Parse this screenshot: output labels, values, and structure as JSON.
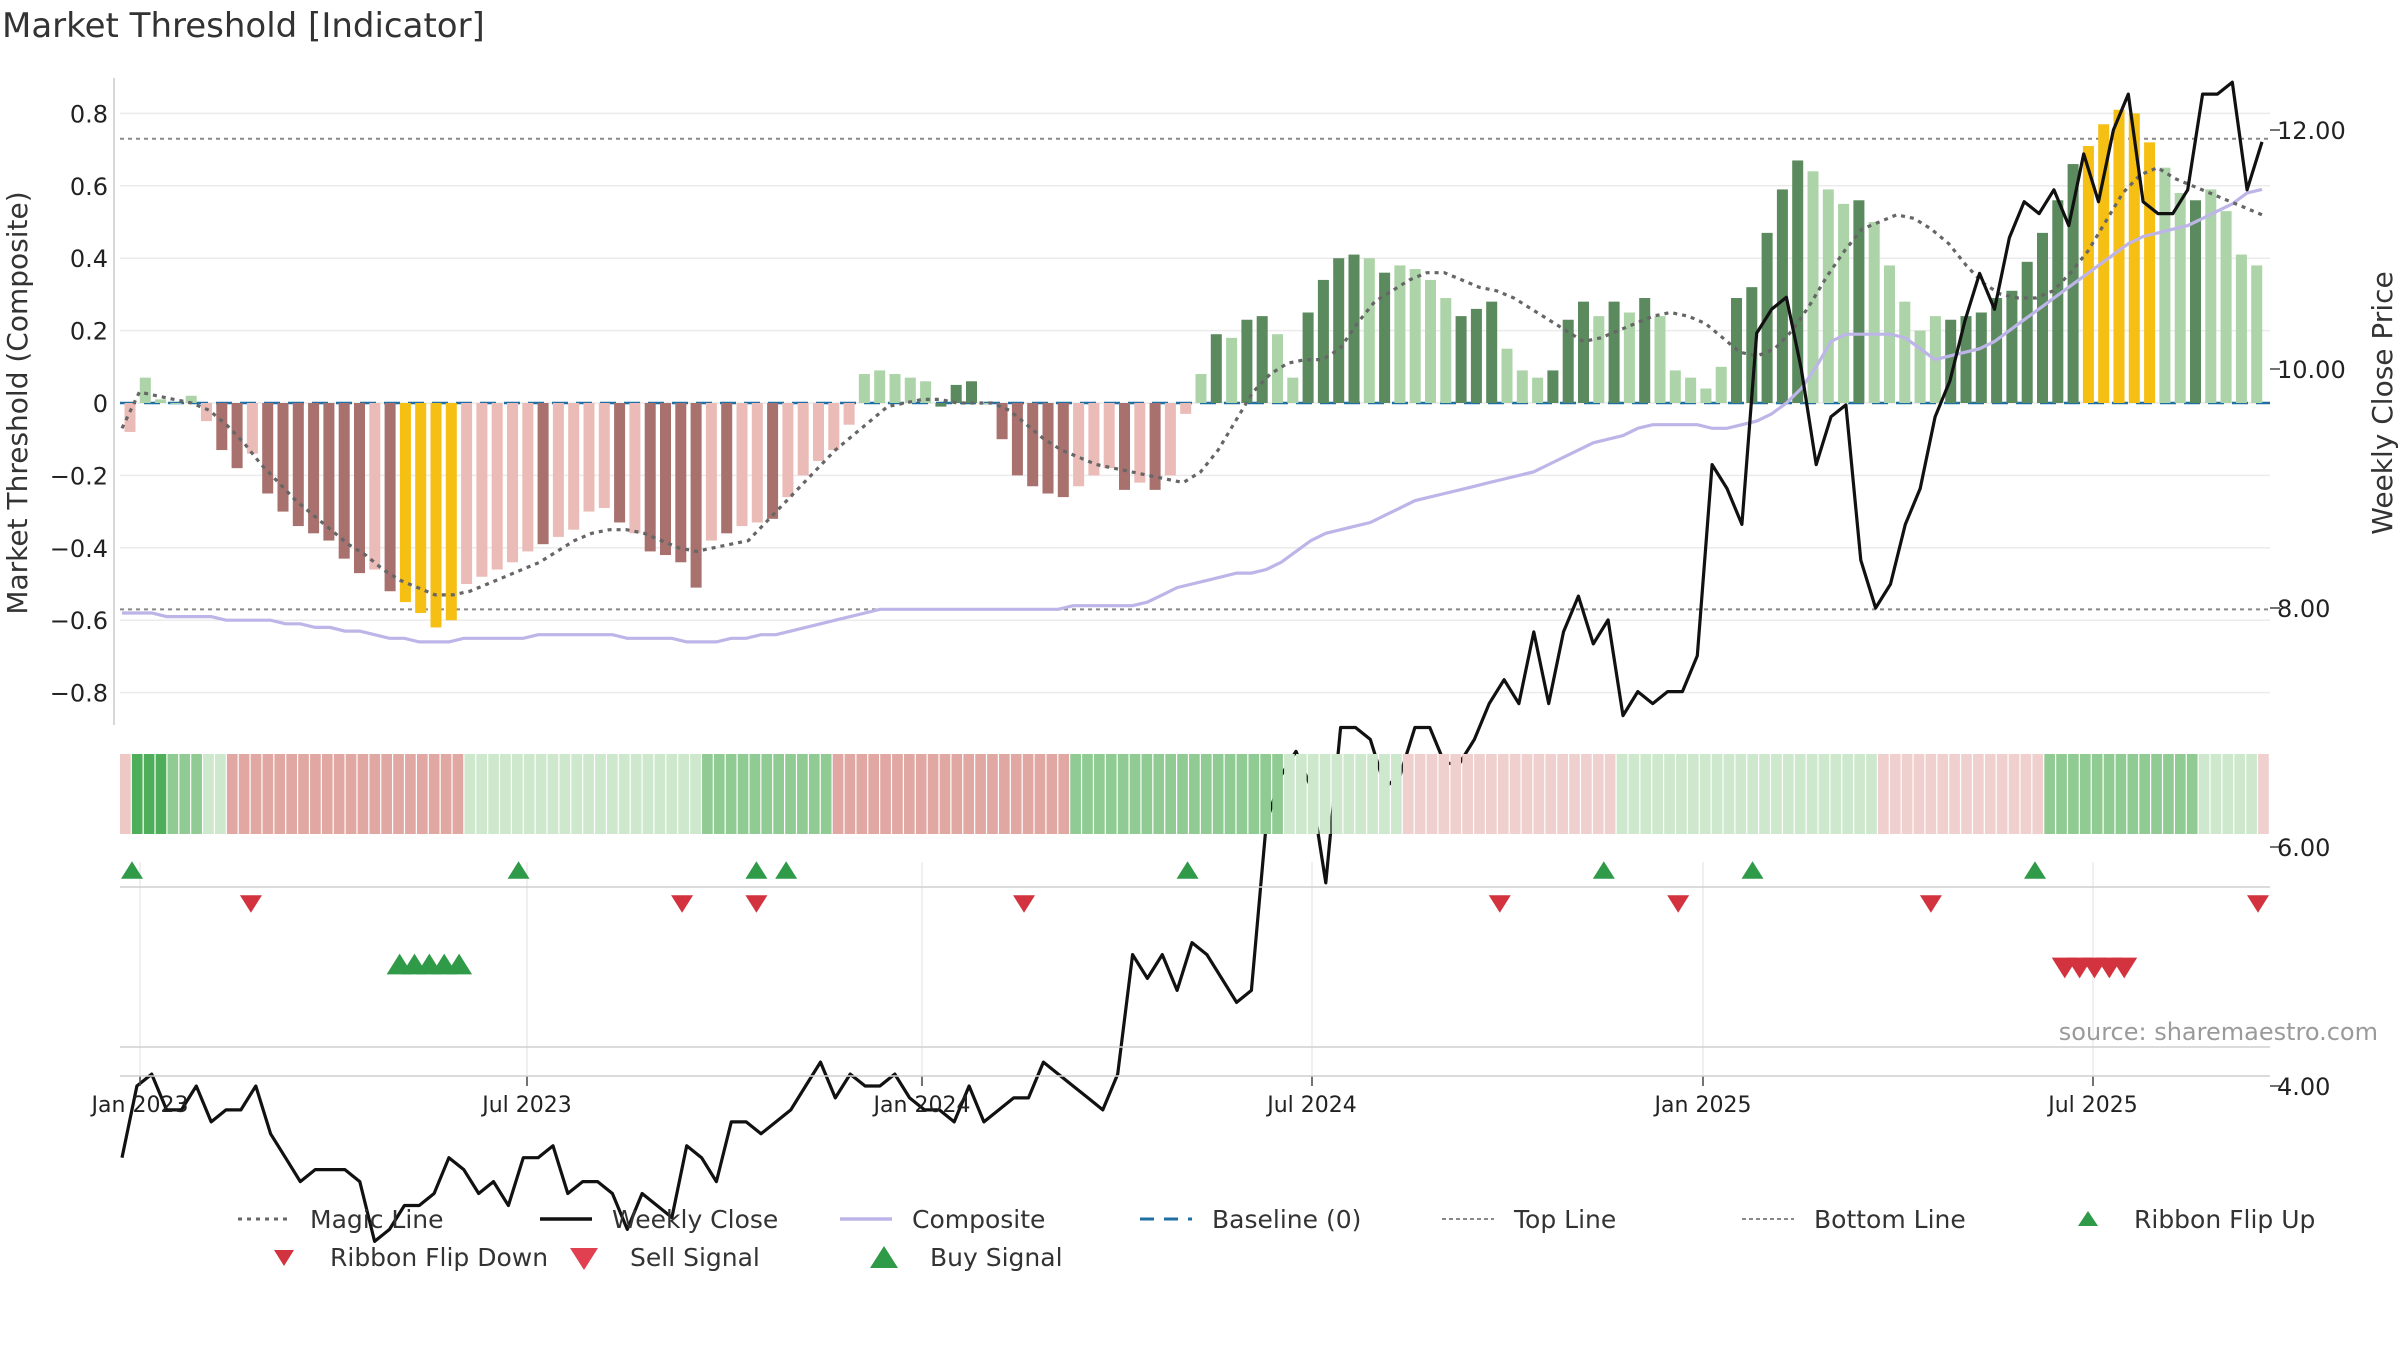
{
  "title": "Market Threshold [Indicator]",
  "source_note": "source: sharemaestro.com",
  "colors": {
    "buy_strong": "#5b8a5e",
    "buy_weak": "#acd4a8",
    "sell_strong": "#a8716d",
    "sell_weak": "#ebbcb7",
    "extreme": "#f5bf14",
    "close": "#111111",
    "composite": "#bdb5e8",
    "magic": "#666666",
    "baseline": "#1f6fa5",
    "signal_up": "#2f9a48",
    "signal_down": "#d2333e"
  },
  "chart_data": {
    "type": "bar+line",
    "y_left": {
      "label": "Market Threshold (Composite)",
      "ticks": [
        "0.8",
        "0.6",
        "0.4",
        "0.2",
        "0",
        "−0.2",
        "−0.4",
        "−0.6",
        "−0.8"
      ],
      "range": [
        -0.9,
        0.9
      ]
    },
    "y_right": {
      "label": "Weekly Close Price",
      "ticks": [
        "12.00",
        "10.00",
        "8.00",
        "6.00",
        "4.00"
      ],
      "range": [
        2.4,
        12.8
      ]
    },
    "x_ticks": [
      "Jan 2023",
      "Jul 2023",
      "Jan 2024",
      "Jul 2024",
      "Jan 2025",
      "Jul 2025"
    ],
    "top_line": 0.73,
    "bottom_line": -0.57,
    "bars": [
      -0.08,
      0.07,
      0.01,
      0.0,
      0.02,
      -0.05,
      -0.13,
      -0.18,
      -0.14,
      -0.25,
      -0.3,
      -0.34,
      -0.36,
      -0.38,
      -0.43,
      -0.47,
      -0.46,
      -0.52,
      -0.55,
      -0.58,
      -0.62,
      -0.6,
      -0.5,
      -0.48,
      -0.46,
      -0.44,
      -0.41,
      -0.39,
      -0.37,
      -0.35,
      -0.3,
      -0.29,
      -0.33,
      -0.36,
      -0.41,
      -0.42,
      -0.44,
      -0.51,
      -0.38,
      -0.36,
      -0.34,
      -0.33,
      -0.32,
      -0.26,
      -0.2,
      -0.16,
      -0.13,
      -0.06,
      0.08,
      0.09,
      0.08,
      0.07,
      0.06,
      -0.01,
      0.05,
      0.06,
      0.0,
      -0.1,
      -0.2,
      -0.23,
      -0.25,
      -0.26,
      -0.23,
      -0.2,
      -0.18,
      -0.24,
      -0.22,
      -0.24,
      -0.2,
      -0.03,
      0.08,
      0.19,
      0.18,
      0.23,
      0.24,
      0.19,
      0.07,
      0.25,
      0.34,
      0.4,
      0.41,
      0.4,
      0.36,
      0.38,
      0.37,
      0.34,
      0.29,
      0.24,
      0.26,
      0.28,
      0.15,
      0.09,
      0.07,
      0.09,
      0.23,
      0.28,
      0.24,
      0.28,
      0.25,
      0.29,
      0.24,
      0.09,
      0.07,
      0.04,
      0.1,
      0.29,
      0.32,
      0.47,
      0.59,
      0.67,
      0.64,
      0.59,
      0.55,
      0.56,
      0.5,
      0.38,
      0.28,
      0.2,
      0.24,
      0.23,
      0.24,
      0.25,
      0.29,
      0.31,
      0.39,
      0.47,
      0.56,
      0.66,
      0.71,
      0.77,
      0.81,
      0.8,
      0.72,
      0.65,
      0.58,
      0.56,
      0.59,
      0.53,
      0.41,
      0.38
    ],
    "bar_kind": [
      "sw",
      "bw",
      "bw",
      "bw",
      "bw",
      "sw",
      "ss",
      "ss",
      "sw",
      "ss",
      "ss",
      "ss",
      "ss",
      "ss",
      "ss",
      "ss",
      "sw",
      "ss",
      "ex",
      "ex",
      "ex",
      "ex",
      "sw",
      "sw",
      "sw",
      "sw",
      "sw",
      "ss",
      "sw",
      "sw",
      "sw",
      "sw",
      "ss",
      "sw",
      "ss",
      "ss",
      "ss",
      "ss",
      "sw",
      "ss",
      "sw",
      "sw",
      "ss",
      "sw",
      "sw",
      "sw",
      "sw",
      "sw",
      "bw",
      "bw",
      "bw",
      "bw",
      "bw",
      "bs",
      "bs",
      "bs",
      "bw",
      "ss",
      "ss",
      "ss",
      "ss",
      "ss",
      "sw",
      "sw",
      "sw",
      "ss",
      "sw",
      "ss",
      "sw",
      "sw",
      "bw",
      "bs",
      "bw",
      "bs",
      "bs",
      "bw",
      "bw",
      "bs",
      "bs",
      "bs",
      "bs",
      "bw",
      "bs",
      "bw",
      "bw",
      "bw",
      "bw",
      "bs",
      "bs",
      "bs",
      "bw",
      "bw",
      "bw",
      "bs",
      "bs",
      "bs",
      "bw",
      "bs",
      "bw",
      "bs",
      "bw",
      "bw",
      "bw",
      "bw",
      "bw",
      "bs",
      "bs",
      "bs",
      "bs",
      "bs",
      "bw",
      "bw",
      "bw",
      "bs",
      "bw",
      "bw",
      "bw",
      "bw",
      "bw",
      "bs",
      "bs",
      "bs",
      "bs",
      "bs",
      "bs",
      "bs",
      "bs",
      "bs",
      "ex",
      "ex",
      "ex",
      "ex",
      "ex",
      "bw",
      "bw",
      "bs",
      "bw",
      "bw",
      "bw",
      "bw"
    ],
    "composite": [
      -0.58,
      -0.58,
      -0.58,
      -0.59,
      -0.59,
      -0.59,
      -0.59,
      -0.6,
      -0.6,
      -0.6,
      -0.6,
      -0.61,
      -0.61,
      -0.62,
      -0.62,
      -0.63,
      -0.63,
      -0.64,
      -0.65,
      -0.65,
      -0.66,
      -0.66,
      -0.66,
      -0.65,
      -0.65,
      -0.65,
      -0.65,
      -0.65,
      -0.64,
      -0.64,
      -0.64,
      -0.64,
      -0.64,
      -0.64,
      -0.65,
      -0.65,
      -0.65,
      -0.65,
      -0.66,
      -0.66,
      -0.66,
      -0.65,
      -0.65,
      -0.64,
      -0.64,
      -0.63,
      -0.62,
      -0.61,
      -0.6,
      -0.59,
      -0.58,
      -0.57,
      -0.57,
      -0.57,
      -0.57,
      -0.57,
      -0.57,
      -0.57,
      -0.57,
      -0.57,
      -0.57,
      -0.57,
      -0.57,
      -0.57,
      -0.56,
      -0.56,
      -0.56,
      -0.56,
      -0.56,
      -0.55,
      -0.53,
      -0.51,
      -0.5,
      -0.49,
      -0.48,
      -0.47,
      -0.47,
      -0.46,
      -0.44,
      -0.41,
      -0.38,
      -0.36,
      -0.35,
      -0.34,
      -0.33,
      -0.31,
      -0.29,
      -0.27,
      -0.26,
      -0.25,
      -0.24,
      -0.23,
      -0.22,
      -0.21,
      -0.2,
      -0.19,
      -0.17,
      -0.15,
      -0.13,
      -0.11,
      -0.1,
      -0.09,
      -0.07,
      -0.06,
      -0.06,
      -0.06,
      -0.06,
      -0.07,
      -0.07,
      -0.06,
      -0.05,
      -0.03,
      0.0,
      0.04,
      0.1,
      0.17,
      0.19,
      0.19,
      0.19,
      0.19,
      0.18,
      0.15,
      0.12,
      0.13,
      0.14,
      0.15,
      0.17,
      0.2,
      0.23,
      0.26,
      0.29,
      0.32,
      0.35,
      0.38,
      0.41,
      0.44,
      0.46,
      0.47,
      0.48,
      0.49,
      0.51,
      0.53,
      0.55,
      0.58,
      0.59
    ],
    "magic_line": [
      -0.07,
      0.03,
      0.02,
      0.01,
      0.0,
      -0.02,
      -0.06,
      -0.11,
      -0.17,
      -0.22,
      -0.27,
      -0.31,
      -0.35,
      -0.39,
      -0.42,
      -0.46,
      -0.49,
      -0.51,
      -0.53,
      -0.53,
      -0.52,
      -0.5,
      -0.48,
      -0.46,
      -0.44,
      -0.41,
      -0.38,
      -0.36,
      -0.35,
      -0.35,
      -0.36,
      -0.38,
      -0.4,
      -0.41,
      -0.4,
      -0.39,
      -0.38,
      -0.33,
      -0.28,
      -0.23,
      -0.18,
      -0.13,
      -0.09,
      -0.05,
      -0.01,
      0.0,
      0.01,
      0.01,
      0.0,
      0.0,
      0.0,
      -0.02,
      -0.06,
      -0.1,
      -0.13,
      -0.15,
      -0.17,
      -0.18,
      -0.19,
      -0.2,
      -0.21,
      -0.22,
      -0.19,
      -0.13,
      -0.05,
      0.03,
      0.08,
      0.11,
      0.12,
      0.12,
      0.15,
      0.22,
      0.28,
      0.31,
      0.34,
      0.36,
      0.36,
      0.34,
      0.32,
      0.31,
      0.29,
      0.26,
      0.23,
      0.2,
      0.17,
      0.18,
      0.2,
      0.22,
      0.24,
      0.25,
      0.24,
      0.22,
      0.18,
      0.14,
      0.13,
      0.15,
      0.2,
      0.27,
      0.35,
      0.42,
      0.48,
      0.5,
      0.52,
      0.51,
      0.48,
      0.44,
      0.38,
      0.33,
      0.3,
      0.29,
      0.29,
      0.31,
      0.36,
      0.42,
      0.5,
      0.58,
      0.63,
      0.65,
      0.62,
      0.6,
      0.58,
      0.56,
      0.54,
      0.52
    ],
    "weekly_close": [
      3.4,
      4.0,
      4.1,
      3.8,
      3.8,
      4.0,
      3.7,
      3.8,
      3.8,
      4.0,
      3.6,
      3.4,
      3.2,
      3.3,
      3.3,
      3.3,
      3.2,
      2.7,
      2.8,
      3.0,
      3.0,
      3.1,
      3.4,
      3.3,
      3.1,
      3.2,
      3.0,
      3.4,
      3.4,
      3.5,
      3.1,
      3.2,
      3.2,
      3.1,
      2.8,
      3.1,
      3.0,
      2.9,
      3.5,
      3.4,
      3.2,
      3.7,
      3.7,
      3.6,
      3.7,
      3.8,
      4.0,
      4.2,
      3.9,
      4.1,
      4.0,
      4.0,
      4.1,
      3.9,
      3.8,
      3.8,
      3.7,
      4.0,
      3.7,
      3.8,
      3.9,
      3.9,
      4.2,
      4.1,
      4.0,
      3.9,
      3.8,
      4.1,
      5.1,
      4.9,
      5.1,
      4.8,
      5.2,
      5.1,
      4.9,
      4.7,
      4.8,
      6.2,
      6.6,
      6.8,
      6.5,
      5.7,
      7.0,
      7.0,
      6.9,
      6.5,
      6.6,
      7.0,
      7.0,
      6.7,
      6.7,
      6.9,
      7.2,
      7.4,
      7.2,
      7.8,
      7.2,
      7.8,
      8.1,
      7.7,
      7.9,
      7.1,
      7.3,
      7.2,
      7.3,
      7.3,
      7.6,
      9.2,
      9.0,
      8.7,
      10.3,
      10.5,
      10.6,
      10.0,
      9.2,
      9.6,
      9.7,
      8.4,
      8.0,
      8.2,
      8.7,
      9.0,
      9.6,
      9.9,
      10.4,
      10.8,
      10.5,
      11.1,
      11.4,
      11.3,
      11.5,
      11.2,
      11.8,
      11.4,
      12.0,
      12.3,
      11.4,
      11.3,
      11.3,
      11.5,
      12.3,
      12.3,
      12.4,
      11.5,
      11.9
    ],
    "ribbon_kind": [
      "sw",
      "bs",
      "bs",
      "bs",
      "bm",
      "bm",
      "bm",
      "bl",
      "bl",
      "sm",
      "sm",
      "sm",
      "sm",
      "sm",
      "sm",
      "sm",
      "sm",
      "sm",
      "sm",
      "sm",
      "sm",
      "sm",
      "sm",
      "sm",
      "sm",
      "sm",
      "sm",
      "sm",
      "sm",
      "bl",
      "bl",
      "bl",
      "bl",
      "bl",
      "bl",
      "bl",
      "bl",
      "bl",
      "bl",
      "bl",
      "bl",
      "bl",
      "bl",
      "bl",
      "bl",
      "bl",
      "bl",
      "bl",
      "bl",
      "bm",
      "bm",
      "bm",
      "bm",
      "bm",
      "bm",
      "bm",
      "bm",
      "bm",
      "bm",
      "bm",
      "sm",
      "sm",
      "sm",
      "sm",
      "sm",
      "sm",
      "sm",
      "sm",
      "sm",
      "sm",
      "sm",
      "sm",
      "sm",
      "sm",
      "sm",
      "sm",
      "sm",
      "sm",
      "sm",
      "sm",
      "bm",
      "bm",
      "bm",
      "bm",
      "bm",
      "bm",
      "bm",
      "bm",
      "bm",
      "bm",
      "bm",
      "bm",
      "bm",
      "bm",
      "bm",
      "bm",
      "bm",
      "bm",
      "bl",
      "bl",
      "bl",
      "bl",
      "bl",
      "bl",
      "bl",
      "bl",
      "bl",
      "bl",
      "sl",
      "sl",
      "sl",
      "sl",
      "sl",
      "sl",
      "sl",
      "sl",
      "sl",
      "sl",
      "sl",
      "sl",
      "sl",
      "sl",
      "sl",
      "sl",
      "sl",
      "sl",
      "bl",
      "bl",
      "bl",
      "bl",
      "bl",
      "bl",
      "bl",
      "bl",
      "bl",
      "bl",
      "bl",
      "bl",
      "bl",
      "bl",
      "bl",
      "bl",
      "bl",
      "bl",
      "bl",
      "bl",
      "bl",
      "bl",
      "sl",
      "sl",
      "sl",
      "sl",
      "sl",
      "sl",
      "sl",
      "sl",
      "sl",
      "sl",
      "sl",
      "sl",
      "sl",
      "sl",
      "bm",
      "bm",
      "bm",
      "bm",
      "bm",
      "bm",
      "bm",
      "bm",
      "bm",
      "bm",
      "bm",
      "bm",
      "bm",
      "bl",
      "bl",
      "bl",
      "bl",
      "bl",
      "sl"
    ],
    "ribbon_flip_up_weeks": [
      0,
      26,
      42,
      44,
      71,
      99,
      109,
      128
    ],
    "ribbon_flip_down_weeks": [
      8,
      37,
      42,
      60,
      92,
      104,
      121,
      143
    ],
    "buy_signal_weeks": [
      18,
      19,
      20,
      21,
      22
    ],
    "sell_signal_weeks": [
      130,
      131,
      132,
      133,
      134
    ]
  },
  "legend": [
    {
      "label": "Magic Line",
      "symbol": "dotted-gray"
    },
    {
      "label": "Weekly Close",
      "symbol": "solid-black"
    },
    {
      "label": "Composite",
      "symbol": "solid-lavender"
    },
    {
      "label": "Baseline (0)",
      "symbol": "dashed-blue"
    },
    {
      "label": "Top Line",
      "symbol": "dotted-gray-thin"
    },
    {
      "label": "Bottom Line",
      "symbol": "dotted-gray-thin"
    },
    {
      "label": "Ribbon Flip Up",
      "symbol": "triangle-up-green"
    },
    {
      "label": "Ribbon Flip Down",
      "symbol": "triangle-down-red"
    },
    {
      "label": "Sell Signal",
      "symbol": "triangle-down-red-large"
    },
    {
      "label": "Buy Signal",
      "symbol": "triangle-up-green-large"
    }
  ]
}
